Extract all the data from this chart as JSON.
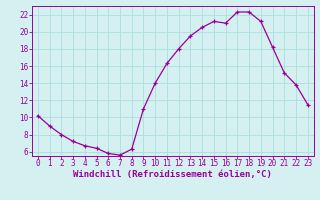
{
  "x": [
    0,
    1,
    2,
    3,
    4,
    5,
    6,
    7,
    8,
    9,
    10,
    11,
    12,
    13,
    14,
    15,
    16,
    17,
    18,
    19,
    20,
    21,
    22,
    23
  ],
  "y": [
    10.2,
    9.0,
    8.0,
    7.2,
    6.7,
    6.4,
    5.8,
    5.6,
    6.3,
    11.0,
    14.0,
    16.3,
    18.0,
    19.5,
    20.5,
    21.2,
    21.0,
    22.3,
    22.3,
    21.2,
    18.2,
    15.2,
    13.8,
    11.5
  ],
  "line_color": "#990099",
  "marker": "+",
  "bg_color": "#d5f0f0",
  "grid_color": "#aadddd",
  "xlabel": "Windchill (Refroidissement éolien,°C)",
  "ylabel": "",
  "xlim": [
    -0.5,
    23.5
  ],
  "ylim": [
    5.5,
    23.0
  ],
  "yticks": [
    6,
    8,
    10,
    12,
    14,
    16,
    18,
    20,
    22
  ],
  "xticks": [
    0,
    1,
    2,
    3,
    4,
    5,
    6,
    7,
    8,
    9,
    10,
    11,
    12,
    13,
    14,
    15,
    16,
    17,
    18,
    19,
    20,
    21,
    22,
    23
  ],
  "axis_color": "#990099",
  "label_fontsize": 6.5,
  "tick_fontsize": 5.5
}
